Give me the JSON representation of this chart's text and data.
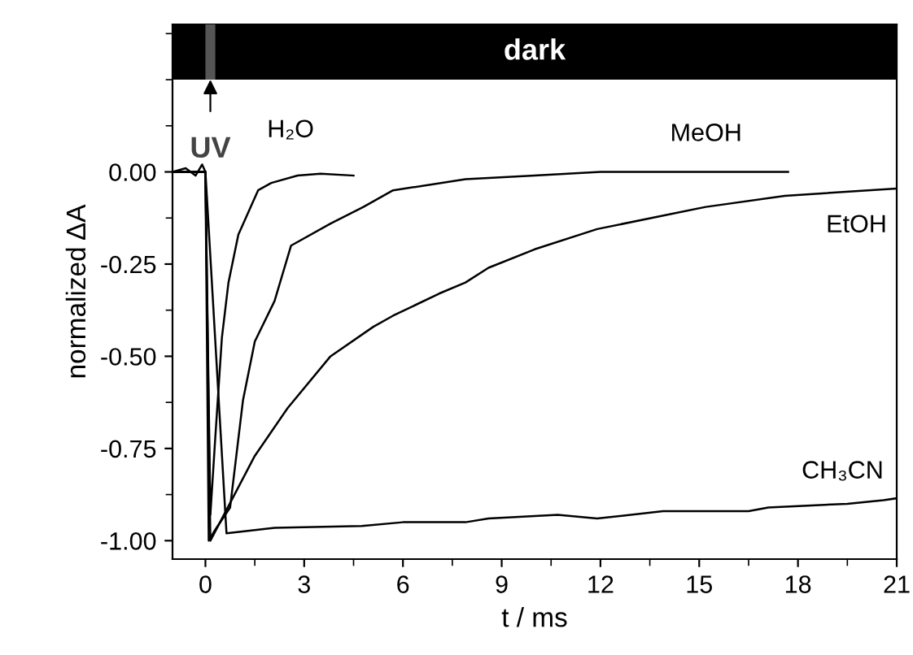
{
  "chart_data": {
    "type": "line",
    "xlabel": "t / ms",
    "ylabel": "normalized ΔA",
    "xlim": [
      -1,
      21
    ],
    "xticks": [
      0,
      3,
      6,
      9,
      12,
      15,
      18,
      21
    ],
    "ylim": [
      -1.05,
      0.4
    ],
    "yticks": [
      {
        "value": 0,
        "label": "0.00"
      },
      {
        "value": -0.25,
        "label": "-0.25"
      },
      {
        "value": -0.5,
        "label": "-0.50"
      },
      {
        "value": -0.75,
        "label": "-0.75"
      },
      {
        "value": -1,
        "label": "-1.00"
      }
    ],
    "grid": false,
    "legend": false,
    "marker": "none",
    "line_style": "solid",
    "bands": [
      {
        "axis": "y",
        "from": 0.25,
        "to": 0.4,
        "label": "dark",
        "color": "#000000"
      },
      {
        "axis": "x",
        "from": 0,
        "to": 0.3,
        "color": "#555555"
      }
    ],
    "annotations": [
      {
        "text": "UV",
        "x": 0.15,
        "y": 0.25
      }
    ],
    "series": [
      {
        "name": "H₂O",
        "color": "#000000",
        "x": [
          -1,
          -0.6,
          -0.3,
          -0.1,
          0,
          0.15,
          0.3,
          0.5,
          0.7,
          1.0,
          1.3,
          1.6,
          2.0,
          2.8,
          3.5,
          4.5
        ],
        "values": [
          0,
          0.01,
          -0.01,
          0.02,
          0,
          -0.93,
          -0.72,
          -0.45,
          -0.3,
          -0.17,
          -0.11,
          -0.05,
          -0.03,
          -0.01,
          -0.005,
          -0.01
        ]
      },
      {
        "name": "MeOH",
        "color": "#000000",
        "x": [
          -1,
          0,
          0.1,
          0.3,
          0.75,
          1.14,
          1.5,
          2.1,
          2.6,
          3.8,
          4.8,
          5.7,
          7.9,
          10,
          12,
          14,
          16,
          17.7
        ],
        "values": [
          0,
          0,
          -1,
          -0.97,
          -0.91,
          -0.62,
          -0.46,
          -0.35,
          -0.2,
          -0.14,
          -0.095,
          -0.05,
          -0.02,
          -0.01,
          0,
          0,
          0,
          0
        ]
      },
      {
        "name": "EtOH",
        "color": "#000000",
        "x": [
          -1,
          0,
          0.15,
          1.5,
          2.5,
          3.8,
          5.1,
          5.7,
          7.1,
          7.9,
          8.6,
          10,
          11.9,
          15.2,
          17.6,
          21
        ],
        "values": [
          0,
          0,
          -1,
          -0.77,
          -0.64,
          -0.5,
          -0.42,
          -0.39,
          -0.33,
          -0.3,
          -0.26,
          -0.21,
          -0.155,
          -0.095,
          -0.065,
          -0.045
        ]
      },
      {
        "name": "CH₃CN",
        "color": "#000000",
        "x": [
          -1,
          0,
          0.64,
          2.1,
          4.75,
          6,
          7.9,
          8.6,
          10.7,
          11.9,
          13.9,
          15.2,
          16.5,
          17.1,
          19.5,
          20.6,
          21
        ],
        "values": [
          0,
          0,
          -0.98,
          -0.965,
          -0.96,
          -0.95,
          -0.95,
          -0.94,
          -0.93,
          -0.94,
          -0.92,
          -0.92,
          -0.92,
          -0.91,
          -0.9,
          -0.89,
          -0.885
        ]
      }
    ]
  }
}
